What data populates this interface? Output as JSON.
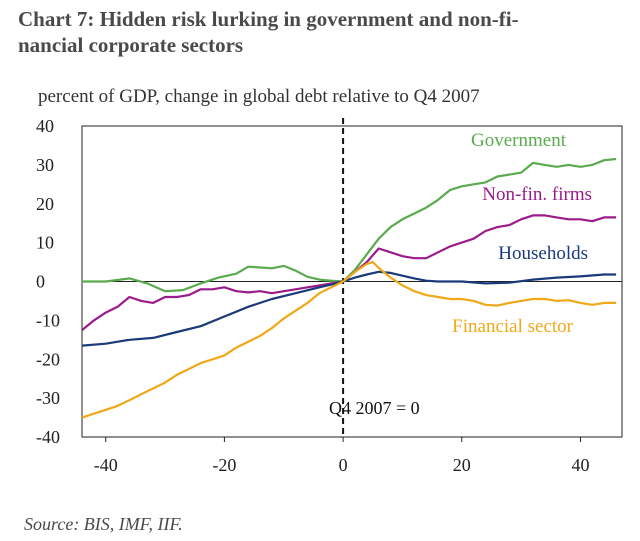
{
  "title": "Chart 7: Hidden risk lurking in government and non-financial corporate sectors",
  "title_lines": [
    "Chart 7: Hidden risk lurking in government and non-fi-",
    "nancial corporate sectors"
  ],
  "source": "Source: BIS, IMF, IIF.",
  "chart_data": {
    "type": "line",
    "title": "Chart 7: Hidden risk lurking in government and non-financial corporate sectors",
    "subtitle": "percent of GDP, change in global debt relative to Q4 2007",
    "xlabel": "",
    "ylabel": "percent of GDP",
    "xlim": [
      -44,
      47
    ],
    "ylim": [
      -40,
      40
    ],
    "xticks": [
      -40,
      -20,
      0,
      20,
      40
    ],
    "yticks": [
      40,
      30,
      20,
      10,
      0,
      -10,
      -20,
      -30,
      -40
    ],
    "reference_line_x": 0,
    "annotation": "Q4 2007 = 0",
    "series": [
      {
        "name": "Government",
        "color": "#5aaa4e",
        "points": [
          [
            -44,
            0
          ],
          [
            -40,
            0
          ],
          [
            -36,
            0.8
          ],
          [
            -33,
            -0.5
          ],
          [
            -30,
            -2.5
          ],
          [
            -27,
            -2.2
          ],
          [
            -24,
            -0.5
          ],
          [
            -21,
            1
          ],
          [
            -18,
            2
          ],
          [
            -16,
            3.8
          ],
          [
            -14,
            3.6
          ],
          [
            -12,
            3.4
          ],
          [
            -10,
            4
          ],
          [
            -8,
            2.8
          ],
          [
            -6,
            1.2
          ],
          [
            -4,
            0.5
          ],
          [
            -2,
            0.2
          ],
          [
            0,
            0
          ],
          [
            2,
            3
          ],
          [
            4,
            7
          ],
          [
            6,
            11
          ],
          [
            8,
            14
          ],
          [
            10,
            16
          ],
          [
            12,
            17.5
          ],
          [
            14,
            19
          ],
          [
            16,
            21
          ],
          [
            18,
            23.5
          ],
          [
            20,
            24.5
          ],
          [
            22,
            25
          ],
          [
            24,
            25.5
          ],
          [
            26,
            27
          ],
          [
            28,
            27.5
          ],
          [
            30,
            28
          ],
          [
            32,
            30.5
          ],
          [
            34,
            30
          ],
          [
            36,
            29.5
          ],
          [
            38,
            30
          ],
          [
            40,
            29.5
          ],
          [
            42,
            30
          ],
          [
            44,
            31.2
          ],
          [
            46,
            31.5
          ]
        ]
      },
      {
        "name": "Non-fin. firms",
        "color": "#9b1b8a",
        "points": [
          [
            -44,
            -12.5
          ],
          [
            -42,
            -10
          ],
          [
            -40,
            -8
          ],
          [
            -38,
            -6.5
          ],
          [
            -36,
            -4
          ],
          [
            -34,
            -5
          ],
          [
            -32,
            -5.5
          ],
          [
            -30,
            -4
          ],
          [
            -28,
            -4
          ],
          [
            -26,
            -3.5
          ],
          [
            -24,
            -2
          ],
          [
            -22,
            -2
          ],
          [
            -20,
            -1.5
          ],
          [
            -18,
            -2.5
          ],
          [
            -16,
            -2.8
          ],
          [
            -14,
            -2.5
          ],
          [
            -12,
            -3
          ],
          [
            -10,
            -2.5
          ],
          [
            -8,
            -2
          ],
          [
            -6,
            -1.5
          ],
          [
            -4,
            -1
          ],
          [
            -2,
            -0.5
          ],
          [
            0,
            0
          ],
          [
            2,
            2.5
          ],
          [
            4,
            5
          ],
          [
            6,
            8.5
          ],
          [
            8,
            7.5
          ],
          [
            10,
            6.5
          ],
          [
            12,
            6
          ],
          [
            14,
            6
          ],
          [
            16,
            7.5
          ],
          [
            18,
            9
          ],
          [
            20,
            10
          ],
          [
            22,
            11
          ],
          [
            24,
            13
          ],
          [
            26,
            14
          ],
          [
            28,
            14.5
          ],
          [
            30,
            16
          ],
          [
            32,
            17
          ],
          [
            34,
            17
          ],
          [
            36,
            16.5
          ],
          [
            38,
            16
          ],
          [
            40,
            16
          ],
          [
            42,
            15.5
          ],
          [
            44,
            16.5
          ],
          [
            46,
            16.5
          ]
        ]
      },
      {
        "name": "Households",
        "color": "#1a3a7a",
        "points": [
          [
            -44,
            -16.5
          ],
          [
            -40,
            -16
          ],
          [
            -36,
            -15
          ],
          [
            -32,
            -14.5
          ],
          [
            -28,
            -13
          ],
          [
            -24,
            -11.5
          ],
          [
            -20,
            -9
          ],
          [
            -16,
            -6.5
          ],
          [
            -12,
            -4.5
          ],
          [
            -8,
            -3
          ],
          [
            -4,
            -1.5
          ],
          [
            -2,
            -0.8
          ],
          [
            0,
            0
          ],
          [
            2,
            1
          ],
          [
            4,
            1.8
          ],
          [
            6,
            2.5
          ],
          [
            8,
            2.2
          ],
          [
            10,
            1.5
          ],
          [
            12,
            0.8
          ],
          [
            14,
            0.2
          ],
          [
            16,
            0
          ],
          [
            20,
            0
          ],
          [
            24,
            -0.5
          ],
          [
            28,
            -0.3
          ],
          [
            32,
            0.5
          ],
          [
            36,
            1
          ],
          [
            40,
            1.3
          ],
          [
            44,
            1.8
          ],
          [
            46,
            1.8
          ]
        ]
      },
      {
        "name": "Financial sector",
        "color": "#f0a818",
        "points": [
          [
            -44,
            -35
          ],
          [
            -42,
            -34
          ],
          [
            -40,
            -33
          ],
          [
            -38,
            -32
          ],
          [
            -36,
            -30.5
          ],
          [
            -34,
            -29
          ],
          [
            -32,
            -27.5
          ],
          [
            -30,
            -26
          ],
          [
            -28,
            -24
          ],
          [
            -26,
            -22.5
          ],
          [
            -24,
            -21
          ],
          [
            -22,
            -20
          ],
          [
            -20,
            -19
          ],
          [
            -18,
            -17
          ],
          [
            -16,
            -15.5
          ],
          [
            -14,
            -14
          ],
          [
            -12,
            -12
          ],
          [
            -10,
            -9.5
          ],
          [
            -8,
            -7.5
          ],
          [
            -6,
            -5.5
          ],
          [
            -4,
            -3
          ],
          [
            -2,
            -1.5
          ],
          [
            0,
            0
          ],
          [
            2,
            2.5
          ],
          [
            4,
            4.5
          ],
          [
            5,
            5
          ],
          [
            6,
            3.5
          ],
          [
            8,
            1
          ],
          [
            10,
            -1
          ],
          [
            12,
            -2.5
          ],
          [
            14,
            -3.5
          ],
          [
            16,
            -4
          ],
          [
            18,
            -4.5
          ],
          [
            20,
            -4.5
          ],
          [
            22,
            -5
          ],
          [
            24,
            -6
          ],
          [
            26,
            -6.2
          ],
          [
            28,
            -5.5
          ],
          [
            30,
            -5
          ],
          [
            32,
            -4.5
          ],
          [
            34,
            -4.5
          ],
          [
            36,
            -5
          ],
          [
            38,
            -4.8
          ],
          [
            40,
            -5.5
          ],
          [
            42,
            -6
          ],
          [
            44,
            -5.5
          ],
          [
            46,
            -5.5
          ]
        ]
      }
    ]
  }
}
